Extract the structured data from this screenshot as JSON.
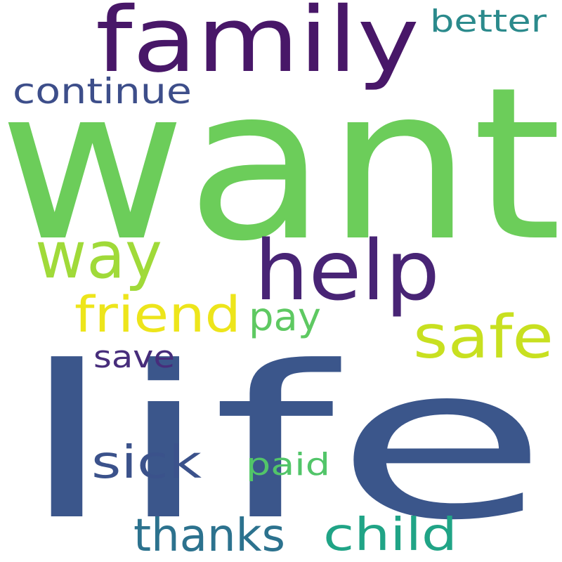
{
  "words": [
    {
      "text": "want",
      "color": "#6ccd5a"
    },
    {
      "text": "life",
      "color": "#3b568b"
    },
    {
      "text": "family",
      "color": "#481768"
    },
    {
      "text": "help",
      "color": "#482475"
    },
    {
      "text": "way",
      "color": "#a0da39"
    },
    {
      "text": "safe",
      "color": "#c8e020"
    },
    {
      "text": "friend",
      "color": "#ede51b"
    },
    {
      "text": "pay",
      "color": "#5ec962"
    },
    {
      "text": "sick",
      "color": "#3b528b"
    },
    {
      "text": "child",
      "color": "#20a486"
    },
    {
      "text": "thanks",
      "color": "#2c728e"
    },
    {
      "text": "continue",
      "color": "#3d4e8a"
    },
    {
      "text": "better",
      "color": "#2b8a8c"
    },
    {
      "text": "save",
      "color": "#472d7b"
    },
    {
      "text": "paid",
      "color": "#52c569"
    }
  ]
}
